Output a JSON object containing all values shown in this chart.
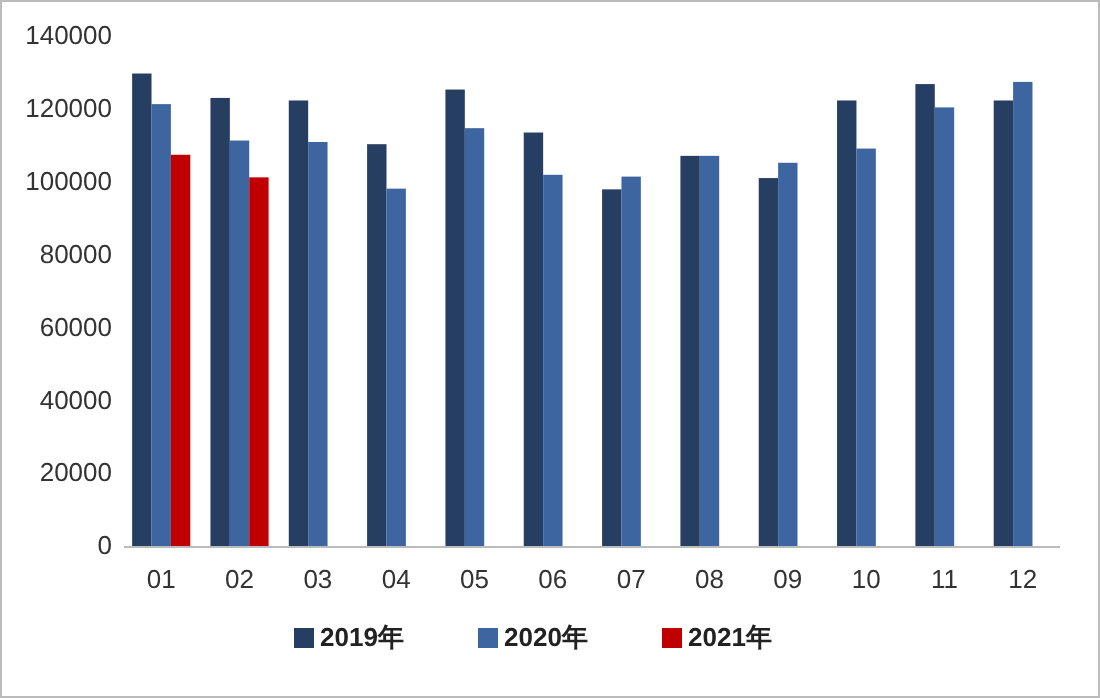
{
  "chart_data": {
    "type": "bar",
    "categories": [
      "01",
      "02",
      "03",
      "04",
      "05",
      "06",
      "07",
      "08",
      "09",
      "10",
      "11",
      "12"
    ],
    "series": [
      {
        "name": "2019年",
        "color": "#253e62",
        "values": [
          129700,
          123000,
          122300,
          110300,
          125300,
          113500,
          97900,
          107100,
          101000,
          122300,
          126800,
          122300
        ]
      },
      {
        "name": "2020年",
        "color": "#3d66a0",
        "values": [
          121300,
          111300,
          110900,
          98100,
          114700,
          101900,
          101400,
          107100,
          105200,
          109100,
          120400,
          127400
        ]
      },
      {
        "name": "2021年",
        "color": "#c00000",
        "values": [
          107400,
          101200,
          null,
          null,
          null,
          null,
          null,
          null,
          null,
          null,
          null,
          null
        ]
      }
    ],
    "ylim": [
      0,
      140000
    ],
    "yticks": [
      0,
      20000,
      40000,
      60000,
      80000,
      100000,
      120000,
      140000
    ],
    "grid": false,
    "legend": "bottom"
  }
}
